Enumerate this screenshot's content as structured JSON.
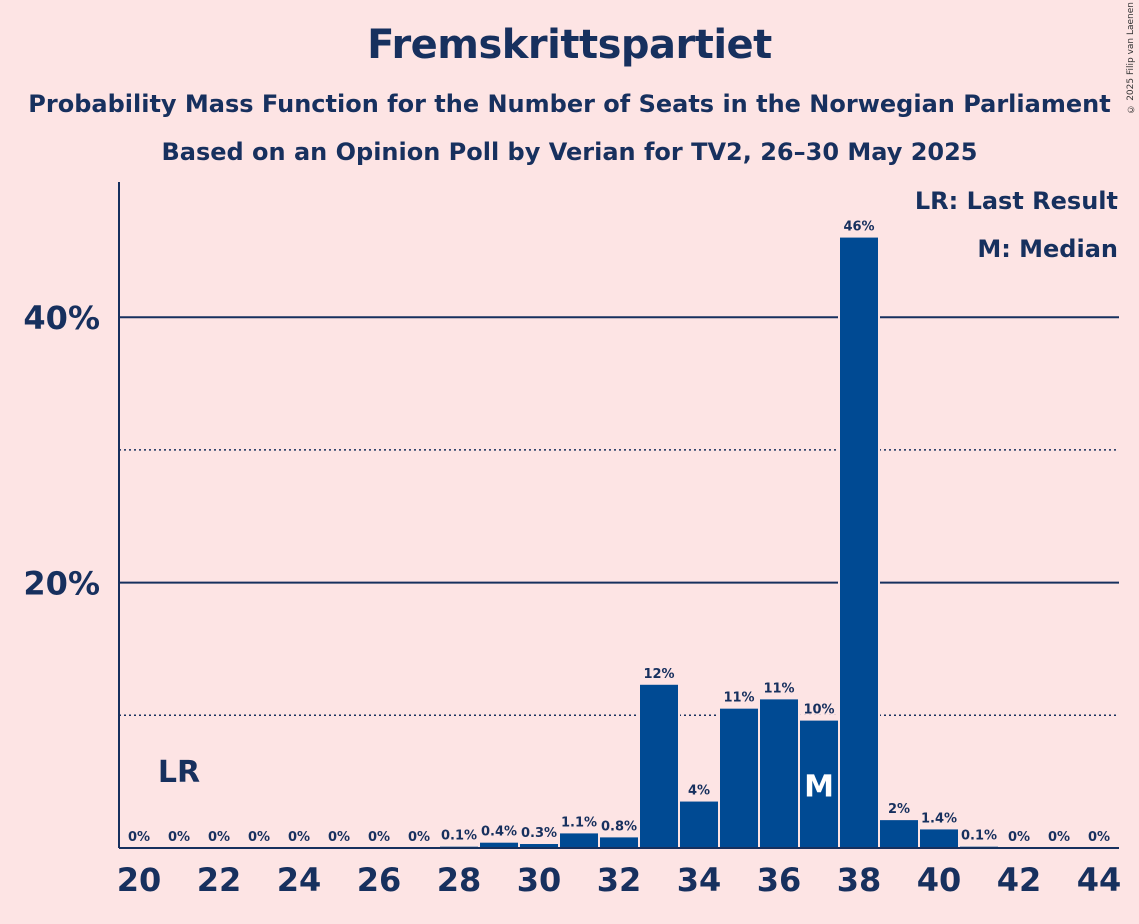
{
  "title": "Fremskrittspartiet",
  "subtitle": "Probability Mass Function for the Number of Seats in the Norwegian Parliament",
  "subtitle2": "Based on an Opinion Poll by Verian for TV2, 26–30 May 2025",
  "copyright": "© 2025 Filip van Laenen",
  "legend": {
    "last_result": "LR: Last Result",
    "median": "M: Median"
  },
  "colors": {
    "background": "#FDE4E4",
    "bar": "#004A93",
    "text": "#17305E"
  },
  "chart_data": {
    "type": "bar",
    "x": [
      20,
      21,
      22,
      23,
      24,
      25,
      26,
      27,
      28,
      29,
      30,
      31,
      32,
      33,
      34,
      35,
      36,
      37,
      38,
      39,
      40,
      41,
      42,
      43,
      44
    ],
    "values": [
      0,
      0,
      0,
      0,
      0,
      0,
      0,
      0,
      0.1,
      0.4,
      0.3,
      1.1,
      0.8,
      12.3,
      3.5,
      10.5,
      11.2,
      9.6,
      46.0,
      2.1,
      1.4,
      0.1,
      0,
      0,
      0
    ],
    "data_labels": [
      "0%",
      "0%",
      "0%",
      "0%",
      "0%",
      "0%",
      "0%",
      "0%",
      "0.1%",
      "0.4%",
      "0.3%",
      "1.1%",
      "0.8%",
      "12%",
      "4%",
      "11%",
      "11%",
      "10%",
      "46%",
      "2%",
      "1.4%",
      "0.1%",
      "0%",
      "0%",
      "0%"
    ],
    "x_tick_labels": [
      "20",
      "22",
      "24",
      "26",
      "28",
      "30",
      "32",
      "34",
      "36",
      "38",
      "40",
      "42",
      "44"
    ],
    "y_tick_labels": [
      "20%",
      "40%"
    ],
    "y_major_ticks": [
      20,
      40
    ],
    "y_minor_ticks": [
      10,
      30
    ],
    "ylim": [
      0,
      50
    ],
    "last_result": {
      "seats": 21,
      "label": "LR"
    },
    "median": {
      "seats": 37,
      "label": "M"
    },
    "grid": true
  }
}
